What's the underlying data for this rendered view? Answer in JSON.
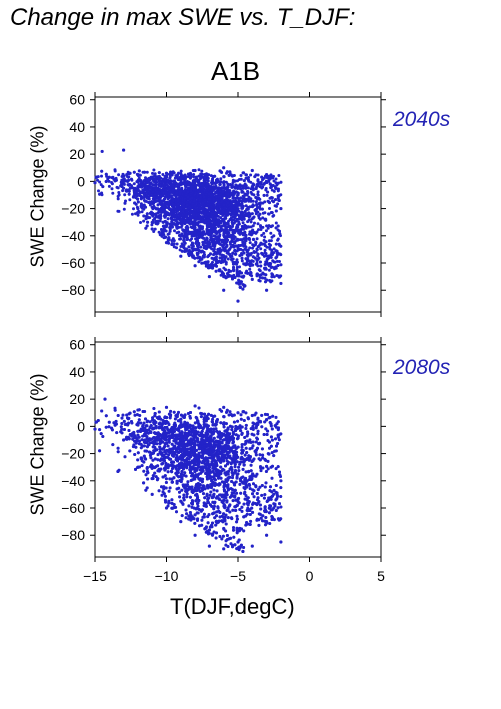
{
  "title": "Change in max SWE vs. T_DJF:",
  "scenario": "A1B",
  "xlabel": "T(DJF,degC)",
  "colors": {
    "points": "#2323c8",
    "period_label": "#2323b4"
  },
  "chart_data": [
    {
      "type": "scatter",
      "panel_label": "2040s",
      "xlabel": "",
      "ylabel": "SWE Change (%)",
      "xlim": [
        -15,
        5
      ],
      "ylim": [
        -96,
        62
      ],
      "x_ticks": [
        -15,
        -10,
        -5,
        0,
        5
      ],
      "y_ticks": [
        60,
        40,
        20,
        0,
        -20,
        -40,
        -60,
        -80
      ],
      "y_tick_labels": [
        "60",
        "40",
        "20",
        "0",
        "−20",
        "−40",
        "−60",
        "−80"
      ],
      "point_cloud": {
        "description_points": [
          [
            -14.5,
            22
          ],
          [
            -13,
            23
          ],
          [
            -15,
            -1
          ],
          [
            -14,
            3
          ],
          [
            -12,
            5
          ],
          [
            -10,
            6
          ],
          [
            -8,
            8
          ],
          [
            -6,
            10
          ],
          [
            -4,
            8
          ],
          [
            -3,
            5
          ],
          [
            -12,
            -20
          ],
          [
            -11,
            -35
          ],
          [
            -10,
            -45
          ],
          [
            -9,
            -55
          ],
          [
            -8,
            -62
          ],
          [
            -7,
            -70
          ],
          [
            -6,
            -80
          ],
          [
            -5,
            -88
          ],
          [
            -4,
            -72
          ],
          [
            -3,
            -60
          ],
          [
            -2.5,
            -40
          ],
          [
            -2,
            -20
          ],
          [
            -2,
            -75
          ],
          [
            -3,
            -80
          ],
          [
            -6,
            -70
          ],
          [
            -8,
            -50
          ],
          [
            -9,
            -40
          ],
          [
            -11,
            -15
          ],
          [
            -13,
            -5
          ]
        ]
      }
    },
    {
      "type": "scatter",
      "panel_label": "2080s",
      "xlabel": "T(DJF,degC)",
      "ylabel": "SWE Change (%)",
      "xlim": [
        -15,
        5
      ],
      "ylim": [
        -96,
        62
      ],
      "x_ticks": [
        -15,
        -10,
        -5,
        0,
        5
      ],
      "x_tick_labels": [
        "−15",
        "−10",
        "−5",
        "0",
        "5"
      ],
      "y_ticks": [
        60,
        40,
        20,
        0,
        -20,
        -40,
        -60,
        -80
      ],
      "y_tick_labels": [
        "60",
        "40",
        "20",
        "0",
        "−20",
        "−40",
        "−60",
        "−80"
      ],
      "point_cloud": {
        "description_points": [
          [
            -14.3,
            20
          ],
          [
            -15,
            -2
          ],
          [
            -14,
            3
          ],
          [
            -12,
            12
          ],
          [
            -10,
            14
          ],
          [
            -8,
            15
          ],
          [
            -6,
            14
          ],
          [
            -5,
            10
          ],
          [
            -4,
            8
          ],
          [
            -3,
            5
          ],
          [
            -12,
            -30
          ],
          [
            -11,
            -50
          ],
          [
            -10,
            -60
          ],
          [
            -9,
            -70
          ],
          [
            -8,
            -80
          ],
          [
            -7,
            -88
          ],
          [
            -6,
            -90
          ],
          [
            -5,
            -85
          ],
          [
            -4,
            -88
          ],
          [
            -3,
            -80
          ],
          [
            -2.5,
            -60
          ],
          [
            -2,
            -40
          ],
          [
            -2,
            -85
          ],
          [
            -3,
            -70
          ],
          [
            -6,
            -75
          ],
          [
            -8,
            -65
          ],
          [
            -9,
            -55
          ],
          [
            -11,
            -20
          ],
          [
            -13,
            -10
          ]
        ]
      }
    }
  ]
}
